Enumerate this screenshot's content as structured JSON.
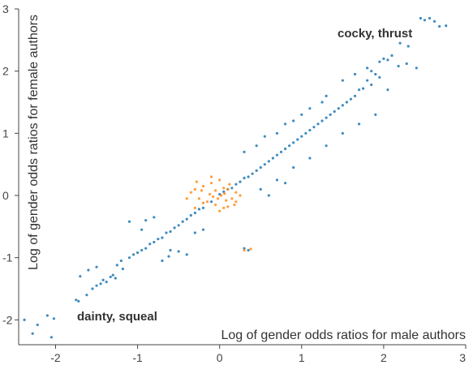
{
  "chart_data": {
    "type": "scatter",
    "xlabel": "Log of gender odds ratios for male authors",
    "ylabel": "Log of gender odds ratios for female authors",
    "xlim": [
      -2.45,
      3.0
    ],
    "ylim": [
      -2.4,
      3.0
    ],
    "x_ticks": [
      -2,
      -1,
      0,
      1,
      2,
      3
    ],
    "y_ticks": [
      -2,
      -1,
      0,
      1,
      2,
      3
    ],
    "grid": false,
    "colors": {
      "main": "#1f77b4",
      "highlight": "#ff8c1a",
      "axis": "#444444"
    },
    "series": [
      {
        "values": [
          [
            -2.38,
            -2.0
          ],
          [
            -2.28,
            -2.22
          ],
          [
            -2.22,
            -2.08
          ],
          [
            -2.1,
            -1.93
          ],
          [
            -2.05,
            -2.28
          ],
          [
            -2.02,
            -1.98
          ],
          [
            -1.72,
            -1.7
          ],
          [
            -1.75,
            -1.68
          ],
          [
            -1.62,
            -1.6
          ],
          [
            -1.55,
            -1.5
          ],
          [
            -1.5,
            -1.45
          ],
          [
            -1.45,
            -1.42
          ],
          [
            -1.42,
            -1.36
          ],
          [
            -1.38,
            -1.39
          ],
          [
            -1.33,
            -1.31
          ],
          [
            -1.3,
            -1.28
          ],
          [
            -1.27,
            -1.33
          ],
          [
            -1.7,
            -1.3
          ],
          [
            -1.6,
            -1.2
          ],
          [
            -1.5,
            -1.15
          ],
          [
            -1.2,
            -1.05
          ],
          [
            -1.25,
            -1.12
          ],
          [
            -1.18,
            -1.18
          ],
          [
            -1.1,
            -1.0
          ],
          [
            -1.05,
            -0.95
          ],
          [
            -1.0,
            -0.92
          ],
          [
            -0.95,
            -0.88
          ],
          [
            -0.9,
            -0.85
          ],
          [
            -0.85,
            -0.78
          ],
          [
            -0.8,
            -0.75
          ],
          [
            -0.75,
            -0.7
          ],
          [
            -0.7,
            -0.68
          ],
          [
            -0.65,
            -0.6
          ],
          [
            -0.6,
            -0.58
          ],
          [
            -0.55,
            -0.52
          ],
          [
            -0.5,
            -0.48
          ],
          [
            -0.45,
            -0.42
          ],
          [
            -0.4,
            -0.38
          ],
          [
            -0.35,
            -0.32
          ],
          [
            -0.3,
            -0.28
          ],
          [
            -0.25,
            -0.22
          ],
          [
            -0.2,
            -0.2
          ],
          [
            -0.9,
            -0.4
          ],
          [
            -0.8,
            -0.35
          ],
          [
            -0.95,
            -0.55
          ],
          [
            -1.1,
            -0.42
          ],
          [
            -0.6,
            -0.88
          ],
          [
            -0.5,
            -0.9
          ],
          [
            -0.4,
            -0.95
          ],
          [
            -0.3,
            -0.6
          ],
          [
            -0.2,
            -0.55
          ],
          [
            -0.7,
            -1.05
          ],
          [
            -0.62,
            -0.98
          ],
          [
            -0.1,
            -0.1
          ],
          [
            0.0,
            0.02
          ],
          [
            0.05,
            0.06
          ],
          [
            0.1,
            0.1
          ],
          [
            0.15,
            0.12
          ],
          [
            0.2,
            0.18
          ],
          [
            0.25,
            0.22
          ],
          [
            0.3,
            0.28
          ],
          [
            0.35,
            0.3
          ],
          [
            0.4,
            0.35
          ],
          [
            0.45,
            0.4
          ],
          [
            0.5,
            0.45
          ],
          [
            0.55,
            0.5
          ],
          [
            0.6,
            0.55
          ],
          [
            0.65,
            0.6
          ],
          [
            0.7,
            0.65
          ],
          [
            0.75,
            0.7
          ],
          [
            0.8,
            0.75
          ],
          [
            0.85,
            0.8
          ],
          [
            0.9,
            0.85
          ],
          [
            0.95,
            0.9
          ],
          [
            1.0,
            0.95
          ],
          [
            1.05,
            1.0
          ],
          [
            1.1,
            1.05
          ],
          [
            1.15,
            1.1
          ],
          [
            1.2,
            1.15
          ],
          [
            1.25,
            1.2
          ],
          [
            1.3,
            1.25
          ],
          [
            1.35,
            1.3
          ],
          [
            1.4,
            1.35
          ],
          [
            1.45,
            1.4
          ],
          [
            1.5,
            1.45
          ],
          [
            1.55,
            1.5
          ],
          [
            1.6,
            1.55
          ],
          [
            1.65,
            1.6
          ],
          [
            1.7,
            1.7
          ],
          [
            1.75,
            1.72
          ],
          [
            1.8,
            1.85
          ],
          [
            1.85,
            1.78
          ],
          [
            1.9,
            1.95
          ],
          [
            1.95,
            1.9
          ],
          [
            0.3,
            0.7
          ],
          [
            0.45,
            0.8
          ],
          [
            0.55,
            0.95
          ],
          [
            0.7,
            1.0
          ],
          [
            0.8,
            1.15
          ],
          [
            0.9,
            1.2
          ],
          [
            1.0,
            1.3
          ],
          [
            1.1,
            1.4
          ],
          [
            1.25,
            1.5
          ],
          [
            1.3,
            1.6
          ],
          [
            0.5,
            0.1
          ],
          [
            0.7,
            0.25
          ],
          [
            0.9,
            0.45
          ],
          [
            1.1,
            0.6
          ],
          [
            1.3,
            0.8
          ],
          [
            1.5,
            1.0
          ],
          [
            1.7,
            1.15
          ],
          [
            1.9,
            1.3
          ],
          [
            0.6,
            0.0
          ],
          [
            0.8,
            0.2
          ],
          [
            2.0,
            2.2
          ],
          [
            2.05,
            2.18
          ],
          [
            2.1,
            2.25
          ],
          [
            2.2,
            2.45
          ],
          [
            2.3,
            2.4
          ],
          [
            2.5,
            2.82
          ],
          [
            2.56,
            2.85
          ],
          [
            2.62,
            2.8
          ],
          [
            2.68,
            2.72
          ],
          [
            2.76,
            2.73
          ],
          [
            2.45,
            2.85
          ],
          [
            2.28,
            2.12
          ],
          [
            2.18,
            2.08
          ],
          [
            1.5,
            1.85
          ],
          [
            1.65,
            1.95
          ],
          [
            1.8,
            2.05
          ],
          [
            1.95,
            2.15
          ],
          [
            1.85,
            2.0
          ],
          [
            2.4,
            2.05
          ],
          [
            2.05,
            1.7
          ],
          [
            0.35,
            -0.88
          ],
          [
            0.3,
            -0.85
          ]
        ]
      },
      {
        "values": [
          [
            -0.35,
            0.05
          ],
          [
            -0.3,
            0.1
          ],
          [
            -0.25,
            -0.05
          ],
          [
            -0.2,
            0.15
          ],
          [
            -0.15,
            -0.1
          ],
          [
            -0.1,
            0.2
          ],
          [
            -0.05,
            -0.15
          ],
          [
            0.0,
            0.25
          ],
          [
            0.05,
            -0.2
          ],
          [
            0.1,
            0.1
          ],
          [
            0.15,
            -0.05
          ],
          [
            0.2,
            0.05
          ],
          [
            -0.4,
            -0.05
          ],
          [
            -0.3,
            -0.2
          ],
          [
            -0.2,
            -0.12
          ],
          [
            -0.1,
            0.3
          ],
          [
            0.0,
            -0.25
          ],
          [
            0.1,
            -0.18
          ],
          [
            0.2,
            -0.1
          ],
          [
            0.25,
            0.0
          ],
          [
            -0.05,
            0.08
          ],
          [
            0.05,
            0.12
          ],
          [
            -0.12,
            0.02
          ],
          [
            -0.22,
            0.08
          ],
          [
            0.08,
            -0.08
          ],
          [
            0.12,
            0.18
          ],
          [
            -0.28,
            0.22
          ],
          [
            0.18,
            -0.15
          ],
          [
            0.3,
            -0.88
          ],
          [
            0.38,
            -0.86
          ],
          [
            -0.02,
            -0.05
          ],
          [
            0.02,
            0.0
          ],
          [
            -0.08,
            -0.02
          ],
          [
            0.06,
            0.03
          ]
        ]
      }
    ],
    "annotations": [
      {
        "text": "cocky, thrust"
      },
      {
        "text": "dainty, squeal"
      }
    ]
  }
}
